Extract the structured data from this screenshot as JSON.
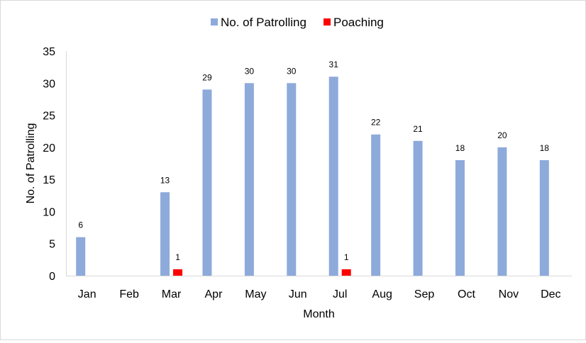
{
  "chart_data": {
    "type": "bar",
    "categories": [
      "Jan",
      "Feb",
      "Mar",
      "Apr",
      "May",
      "Jun",
      "Jul",
      "Aug",
      "Sep",
      "Oct",
      "Nov",
      "Dec"
    ],
    "series": [
      {
        "name": "No. of Patrolling",
        "color": "#8eaadb",
        "values": [
          6,
          0,
          13,
          29,
          30,
          30,
          31,
          22,
          21,
          18,
          20,
          18
        ],
        "labels": [
          "6",
          "",
          "13",
          "29",
          "30",
          "30",
          "31",
          "22",
          "21",
          "18",
          "20",
          "18"
        ]
      },
      {
        "name": "Poaching",
        "color": "#ff0000",
        "values": [
          0,
          0,
          1,
          0,
          0,
          0,
          1,
          0,
          0,
          0,
          0,
          0
        ],
        "labels": [
          "",
          "",
          "1",
          "",
          "",
          "",
          "1",
          "",
          "",
          "",
          "",
          ""
        ]
      }
    ],
    "title": "",
    "xlabel": "Month",
    "ylabel": "No. of Patrolling",
    "ylim": [
      0,
      35
    ],
    "yticks": [
      "0",
      "5",
      "10",
      "15",
      "20",
      "25",
      "30",
      "35"
    ],
    "grid": false,
    "legend_position": "top"
  }
}
